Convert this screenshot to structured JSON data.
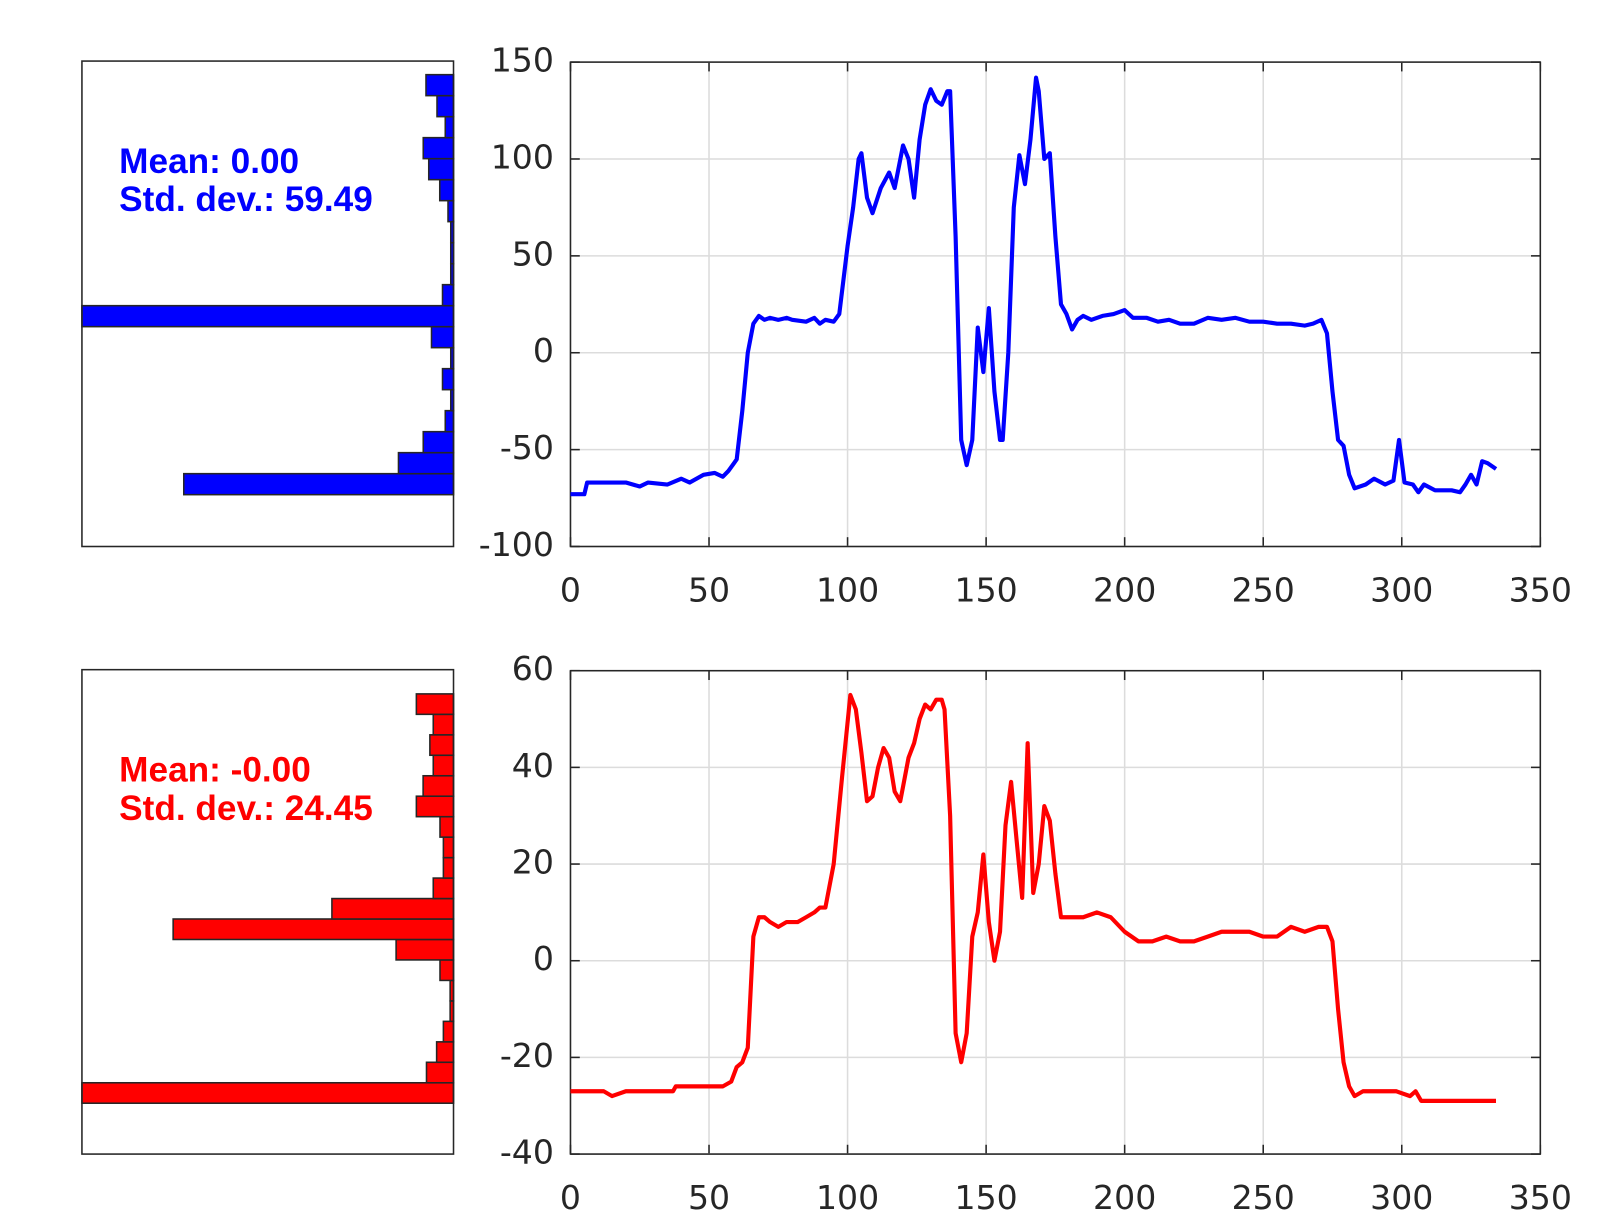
{
  "chart_data": [
    {
      "type": "histogram",
      "orientation": "horizontal",
      "color": "#0000ff",
      "bins": [
        -73.3,
        -62.49,
        -51.67,
        -40.86,
        -30.04,
        -19.23,
        -8.41,
        2.4,
        13.22,
        24.03,
        34.85,
        45.67,
        56.48,
        67.3,
        78.11,
        88.93,
        99.74,
        110.56,
        121.37,
        132.19,
        143.0
      ],
      "counts": [
        98,
        20,
        11,
        3,
        1,
        4,
        1,
        8,
        135,
        4,
        1,
        1,
        1,
        2,
        5,
        9,
        11,
        3,
        6,
        10
      ],
      "xlim": [
        0,
        135
      ],
      "ylim": [
        -100,
        150
      ],
      "annotations": [
        "Mean: 0.00",
        "Std. dev.: 59.49"
      ]
    },
    {
      "type": "line",
      "color": "#0000ff",
      "grid": true,
      "x": [
        0,
        5,
        6,
        10,
        15,
        20,
        25,
        28,
        35,
        40,
        43,
        48,
        52,
        55,
        57,
        59,
        60,
        62,
        64,
        66,
        68,
        70,
        72,
        75,
        78,
        80,
        85,
        88,
        90,
        92,
        95,
        97,
        100,
        102,
        104,
        105,
        107,
        109,
        112,
        115,
        117,
        120,
        122,
        124,
        126,
        128,
        130,
        132,
        134,
        136,
        137,
        139,
        141,
        143,
        145,
        147,
        149,
        151,
        153,
        155,
        156,
        158,
        160,
        162,
        164,
        166,
        168,
        169,
        171,
        173,
        175,
        177,
        179,
        181,
        183,
        185,
        188,
        192,
        196,
        200,
        203,
        208,
        212,
        216,
        220,
        225,
        230,
        235,
        240,
        245,
        250,
        255,
        260,
        265,
        268,
        271,
        273,
        275,
        277,
        279,
        281,
        283,
        287,
        290,
        294,
        297,
        299,
        301,
        304,
        306,
        308,
        312,
        318,
        321,
        323,
        325,
        327,
        329,
        331,
        334
      ],
      "values": [
        -73,
        -73,
        -67,
        -67,
        -67,
        -67,
        -69,
        -67,
        -68,
        -65,
        -67,
        -63,
        -62,
        -64,
        -61,
        -57,
        -55,
        -30,
        0,
        15,
        19,
        17,
        18,
        17,
        18,
        17,
        16,
        18,
        15,
        17,
        16,
        20,
        55,
        75,
        100,
        103,
        80,
        72,
        85,
        93,
        85,
        107,
        100,
        80,
        110,
        128,
        136,
        130,
        128,
        135,
        135,
        60,
        -45,
        -58,
        -45,
        13,
        -10,
        23,
        -20,
        -45,
        -45,
        0,
        75,
        102,
        87,
        110,
        142,
        135,
        100,
        103,
        60,
        25,
        20,
        12,
        17,
        19,
        17,
        19,
        20,
        22,
        18,
        18,
        16,
        17,
        15,
        15,
        18,
        17,
        18,
        16,
        16,
        15,
        15,
        14,
        15,
        17,
        10,
        -20,
        -45,
        -48,
        -63,
        -70,
        -68,
        -65,
        -68,
        -66,
        -45,
        -67,
        -68,
        -72,
        -68,
        -71,
        -71,
        -72,
        -68,
        -63,
        -68,
        -56,
        -57,
        -60
      ],
      "xlim": [
        0,
        350
      ],
      "ylim": [
        -100,
        150
      ],
      "xticks": [
        0,
        50,
        100,
        150,
        200,
        250,
        300,
        350
      ],
      "yticks": [
        -100,
        -50,
        0,
        50,
        100,
        150
      ]
    },
    {
      "type": "histogram",
      "orientation": "horizontal",
      "color": "#ff0000",
      "bins": [
        -29.5,
        -25.28,
        -21.05,
        -16.83,
        -12.6,
        -8.38,
        -4.15,
        0.08,
        4.3,
        8.53,
        12.75,
        16.98,
        21.2,
        25.43,
        29.65,
        33.88,
        38.1,
        42.33,
        46.55,
        50.78,
        55.0
      ],
      "counts": [
        110,
        8,
        5,
        3,
        1,
        1,
        4,
        17,
        83,
        36,
        6,
        3,
        3,
        4,
        11,
        9,
        6,
        7,
        6,
        11
      ],
      "xlim": [
        0,
        110
      ],
      "ylim": [
        -40,
        60
      ],
      "annotations": [
        "Mean: -0.00",
        "Std. dev.: 24.45"
      ]
    },
    {
      "type": "line",
      "color": "#ff0000",
      "grid": true,
      "x": [
        0,
        8,
        12,
        15,
        20,
        25,
        30,
        37,
        38,
        45,
        50,
        55,
        58,
        60,
        62,
        64,
        66,
        68,
        70,
        72,
        75,
        78,
        82,
        85,
        88,
        90,
        92,
        95,
        98,
        101,
        103,
        105,
        107,
        109,
        111,
        113,
        115,
        117,
        119,
        120,
        122,
        124,
        126,
        128,
        130,
        132,
        134,
        135,
        137,
        139,
        141,
        143,
        145,
        147,
        149,
        151,
        153,
        155,
        157,
        159,
        161,
        163,
        165,
        167,
        169,
        171,
        173,
        175,
        177,
        180,
        185,
        190,
        195,
        200,
        205,
        210,
        215,
        220,
        225,
        230,
        235,
        240,
        245,
        250,
        255,
        260,
        265,
        270,
        273,
        275,
        277,
        279,
        281,
        283,
        286,
        290,
        295,
        298,
        303,
        305,
        307,
        310,
        320,
        334
      ],
      "values": [
        -27,
        -27,
        -27,
        -28,
        -27,
        -27,
        -27,
        -27,
        -26,
        -26,
        -26,
        -26,
        -25,
        -22,
        -21,
        -18,
        5,
        9,
        9,
        8,
        7,
        8,
        8,
        9,
        10,
        11,
        11,
        20,
        38,
        55,
        52,
        43,
        33,
        34,
        40,
        44,
        42,
        35,
        33,
        36,
        42,
        45,
        50,
        53,
        52,
        54,
        54,
        52,
        30,
        -15,
        -21,
        -15,
        5,
        10,
        22,
        8,
        0,
        6,
        28,
        37,
        25,
        13,
        45,
        14,
        20,
        32,
        29,
        18,
        9,
        9,
        9,
        10,
        9,
        6,
        4,
        4,
        5,
        4,
        4,
        5,
        6,
        6,
        6,
        5,
        5,
        7,
        6,
        7,
        7,
        4,
        -10,
        -21,
        -26,
        -28,
        -27,
        -27,
        -27,
        -27,
        -28,
        -27,
        -29,
        -29,
        -29,
        -29
      ],
      "xlim": [
        0,
        350
      ],
      "ylim": [
        -40,
        60
      ],
      "xticks": [
        0,
        50,
        100,
        150,
        200,
        250,
        300,
        350
      ],
      "yticks": [
        -40,
        -20,
        0,
        20,
        40,
        60
      ]
    }
  ]
}
